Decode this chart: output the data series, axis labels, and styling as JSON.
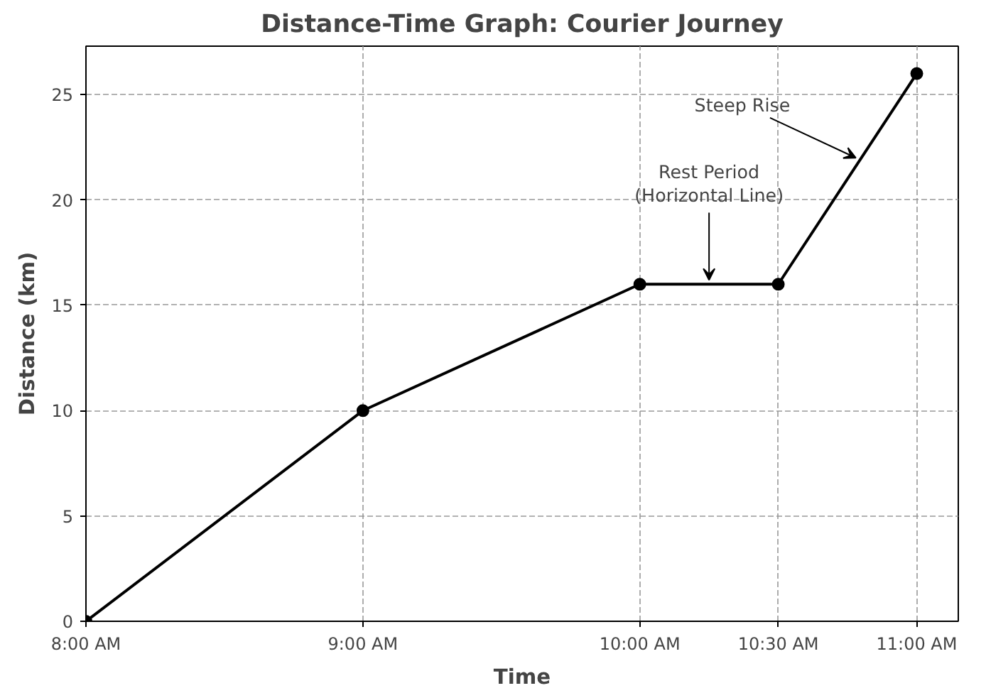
{
  "chart_data": {
    "type": "line",
    "title": "Distance-Time Graph: Courier Journey",
    "xlabel": "Time",
    "ylabel": "Distance (km)",
    "x": [
      8,
      9,
      10,
      10.5,
      11
    ],
    "series": [
      {
        "color": "#000000",
        "values": [
          0,
          10,
          16,
          16,
          26
        ]
      }
    ],
    "xlim": [
      8,
      11.15
    ],
    "ylim": [
      0,
      27.3
    ],
    "xticks": [
      {
        "value": 8,
        "label": "8:00 AM"
      },
      {
        "value": 9,
        "label": "9:00 AM"
      },
      {
        "value": 10,
        "label": "10:00 AM"
      },
      {
        "value": 10.5,
        "label": "10:30 AM"
      },
      {
        "value": 11,
        "label": "11:00 AM"
      }
    ],
    "yticks": [
      0,
      5,
      10,
      15,
      20,
      25
    ],
    "grid": true,
    "marker": "circle",
    "line_style": "solid",
    "annotations": [
      {
        "text": "Steep Rise",
        "x": 10.78,
        "y": 22
      },
      {
        "text": "Rest Period\n(Horizontal Line)",
        "x": 10.25,
        "y": 16.2
      }
    ]
  }
}
